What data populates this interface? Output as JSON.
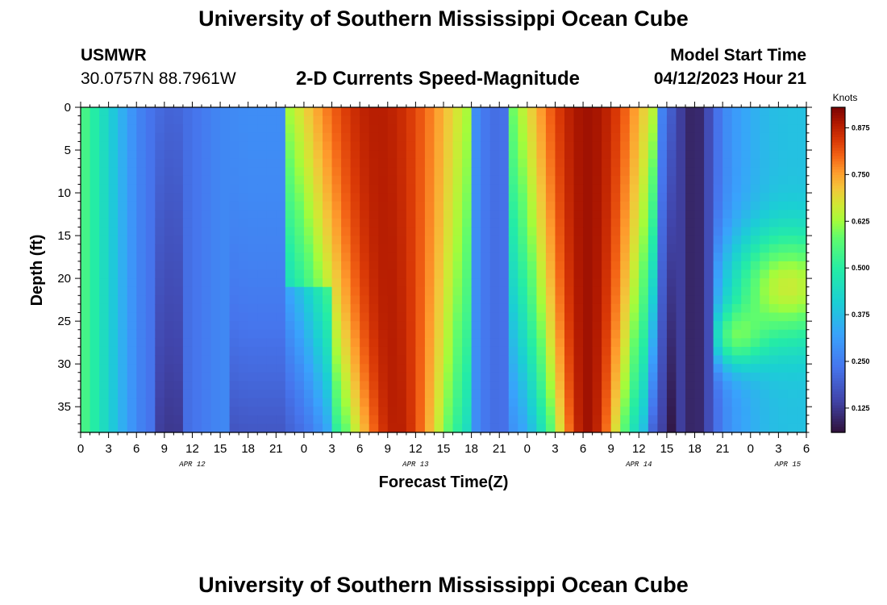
{
  "header": {
    "title": "University of Southern Mississippi Ocean Cube",
    "station": "USMWR",
    "coords": "30.0757N  88.7961W",
    "subtitle": "2-D Currents Speed-Magnitude",
    "model_label": "Model Start Time",
    "model_time": "04/12/2023 Hour 21"
  },
  "footer": {
    "title": "University of Southern Mississippi Ocean Cube"
  },
  "chart_data": {
    "type": "heatmap",
    "xlabel": "Forecast Time(Z)",
    "ylabel": "Depth (ft)",
    "x_range_hours": [
      0,
      78
    ],
    "x_tick_step_hours": 3,
    "x_tick_labels": [
      "0",
      "3",
      "6",
      "9",
      "12",
      "15",
      "18",
      "21",
      "0",
      "3",
      "6",
      "9",
      "12",
      "15",
      "18",
      "21",
      "0",
      "3",
      "6",
      "9",
      "12",
      "15",
      "18",
      "21",
      "0",
      "3",
      "6"
    ],
    "date_labels": [
      {
        "label": "APR 12",
        "hour": 12
      },
      {
        "label": "APR 13",
        "hour": 36
      },
      {
        "label": "APR 14",
        "hour": 60
      },
      {
        "label": "APR 15",
        "hour": 76
      }
    ],
    "y_range_ft": [
      0,
      38
    ],
    "y_ticks": [
      0,
      5,
      10,
      15,
      20,
      25,
      30,
      35
    ],
    "colorbar": {
      "units": "Knots",
      "range": [
        0.06,
        0.93
      ],
      "tick_values": [
        0.125,
        0.25,
        0.375,
        0.5,
        0.625,
        0.75,
        0.875
      ],
      "tick_labels": [
        "0.125",
        "0.250",
        "0.375",
        "0.500",
        "0.625",
        "0.750",
        "0.875"
      ]
    },
    "surface_speed_profile": [
      {
        "hour": 0,
        "speed": 0.56
      },
      {
        "hour": 1,
        "speed": 0.52
      },
      {
        "hour": 2,
        "speed": 0.47
      },
      {
        "hour": 3,
        "speed": 0.42
      },
      {
        "hour": 4,
        "speed": 0.37
      },
      {
        "hour": 5,
        "speed": 0.32
      },
      {
        "hour": 6,
        "speed": 0.27
      },
      {
        "hour": 8,
        "speed": 0.22
      },
      {
        "hour": 10,
        "speed": 0.2
      },
      {
        "hour": 12,
        "speed": 0.23
      },
      {
        "hour": 15,
        "speed": 0.27
      },
      {
        "hour": 18,
        "speed": 0.28
      },
      {
        "hour": 22,
        "speed": 0.28
      },
      {
        "hour": 23,
        "speed": 0.42
      },
      {
        "hour": 24,
        "speed": 0.65
      },
      {
        "hour": 25,
        "speed": 0.82
      },
      {
        "hour": 27,
        "speed": 0.88
      },
      {
        "hour": 30,
        "speed": 0.84
      },
      {
        "hour": 33,
        "speed": 0.76
      },
      {
        "hour": 36,
        "speed": 0.72
      },
      {
        "hour": 39,
        "speed": 0.66
      },
      {
        "hour": 40,
        "speed": 0.55
      },
      {
        "hour": 41,
        "speed": 0.42
      },
      {
        "hour": 42,
        "speed": 0.3
      },
      {
        "hour": 44,
        "speed": 0.22
      },
      {
        "hour": 46,
        "speed": 0.23
      },
      {
        "hour": 47,
        "speed": 0.32
      },
      {
        "hour": 48,
        "speed": 0.48
      },
      {
        "hour": 49,
        "speed": 0.62
      },
      {
        "hour": 50,
        "speed": 0.74
      },
      {
        "hour": 52,
        "speed": 0.86
      },
      {
        "hour": 54,
        "speed": 0.9
      },
      {
        "hour": 56,
        "speed": 0.88
      },
      {
        "hour": 58,
        "speed": 0.78
      },
      {
        "hour": 59,
        "speed": 0.66
      },
      {
        "hour": 60,
        "speed": 0.52
      },
      {
        "hour": 61,
        "speed": 0.4
      },
      {
        "hour": 62,
        "speed": 0.3
      },
      {
        "hour": 63,
        "speed": 0.22
      },
      {
        "hour": 64,
        "speed": 0.16
      },
      {
        "hour": 65,
        "speed": 0.11
      },
      {
        "hour": 66,
        "speed": 0.08
      },
      {
        "hour": 67,
        "speed": 0.12
      },
      {
        "hour": 68,
        "speed": 0.2
      },
      {
        "hour": 69,
        "speed": 0.26
      },
      {
        "hour": 70,
        "speed": 0.3
      },
      {
        "hour": 72,
        "speed": 0.34
      },
      {
        "hour": 74,
        "speed": 0.37
      },
      {
        "hour": 76,
        "speed": 0.38
      },
      {
        "hour": 78,
        "speed": 0.38
      }
    ]
  }
}
